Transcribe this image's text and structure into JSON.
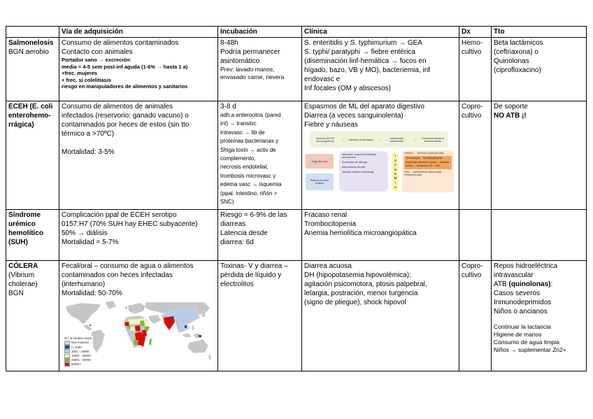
{
  "header": {
    "c1": "",
    "via": "Vía de adquisición",
    "inc": "Incubación",
    "cli": "Clínica",
    "dx": "Dx",
    "tto": "Tto"
  },
  "salmonelosis": {
    "name": "Salmonelosis",
    "subname": "BGN aerobio",
    "via": [
      "Consumo de alimentos contaminados",
      "Contacto con animales"
    ],
    "via_fine": [
      "Portador sano → excreción:",
      "media = 4-5 sem post-inf aguda (1-6% → hasta 1 a)",
      "+frec. mujeres",
      "+ frec. si colelitiasis",
      "riesgo en manipuladores de alimentos y sanitarios"
    ],
    "inc": [
      "8-48h",
      "Podría permanecer",
      "asintomático"
    ],
    "inc_fine": [
      "Prev: lavado manos,",
      "envasado carne, nevera"
    ],
    "cli": [
      "S. enteritidis y S. typhimurium → GEA",
      "S. typhi/ paratyphi → fiebre entérica",
      "(diseminación linf-hemática → focos en",
      "hígado, bazo, VB y MO), bacteriemia, inf",
      "endovasc e",
      "Inf focales (OM y abscesos)"
    ],
    "dx": [
      "Hemo-",
      "cultivo"
    ],
    "tto": [
      "Beta lactámicos",
      "(ceftriaxona) o",
      "Quinolonas",
      "(ciprofloxacino)"
    ]
  },
  "eceh": {
    "name": [
      "ECEH (E. coli",
      "enterohemo-",
      "rrágica)"
    ],
    "via": [
      "Consumo de alimentos de animales",
      "infectados (reservorio: ganado vacuno) o",
      "contaminados por heces de estos (sin tto",
      "térmico a >70ºC)",
      "",
      "Mortalidad: 3-5%"
    ],
    "inc": "3-8 d",
    "inc_fine": [
      "adh a enterocitos (pared",
      "int) → transloc",
      "intravasc → lib de",
      "proteínas bacterianas y",
      "Shiga toxin → activ de",
      "complemento,",
      "necrosis endotelial,",
      "trombosis microvasc y",
      "edema vasc → isquemia",
      "(ppal. intestino, riñón >",
      "SNC)"
    ],
    "cli": [
      "Espasmos de ML del aparato digestivo",
      "Diarrea (a veces sanguinolenta)",
      "Fiebre y náuseas"
    ],
    "dx": [
      "Copro-",
      "cultivo"
    ],
    "tto_1": "De soporte",
    "tto_2": "NO ATB ¡!",
    "diagram": {
      "top_steps": [
        "Inoculum (10-100 microorganisms)",
        "Adhesion (enterocytes)",
        "Intravascular translocation",
        "Production/release of virulence factors"
      ],
      "box_shiga": "Shiga-like toxin",
      "box_plasmid": "Plasmid-encoded proteins",
      "center": [
        "Alternative complement pathway development",
        "Endothelial cell damage",
        "Microvascular thrombi",
        "Vascular oedema and leakage"
      ],
      "ischemia": [
        "I",
        "S",
        "C",
        "H",
        "E",
        "M",
        "I",
        "A"
      ],
      "right_first": "Intestine → diarrhoea (watery/bloody)",
      "right_inner": [
        "Thrombocyte → thrombocytopenia",
        "Erythrocyte traumatic rupture → anaemia",
        "Kidney → ischaemia ATN → AKI"
      ],
      "right_last": "CNS → oedema/focal haemorrhage → coma/focal signs"
    }
  },
  "suh": {
    "name": [
      "Síndrome",
      "urémico",
      "hemolítico",
      "(SUH)"
    ],
    "via": [
      "Complicación ppal de ECEH serotipo",
      "0157:H7 (70% SUH hay EHEC subyacente)",
      "50% → diálisis",
      "Mortalidad = 5-7%"
    ],
    "inc": [
      "Riesgo = 6-9% de las",
      "diarreas",
      "Latencia desde",
      "diarrea: 6d"
    ],
    "cli": [
      "Fracaso renal",
      "Trombocitopenia",
      "Anemia hemolítica microangiopática"
    ]
  },
  "colera": {
    "name": "CÓLERA",
    "subname": [
      "(Vibrium",
      "cholerae)",
      "BGN"
    ],
    "via": [
      "Fecal/oral – consumo de agua o alimentos",
      "contaminados con heces infectadas",
      "(interhumano)",
      "Mortalidad: 50-70%"
    ],
    "inc": [
      "Toxinas- V y diarrea –",
      "pérdida de líquido y",
      "electrolitos"
    ],
    "cli": [
      "Diarrea acuosa",
      "DH (hipopotasemia hipovolémica):",
      "agitación psicomotora, ptosis palpebral,",
      "letargia, postración, menor turgencia",
      "(signo de pliegue), shock hipovol"
    ],
    "dx": [
      "Copro-",
      "cultivo"
    ],
    "tto": [
      "Repos hidroeléctrica",
      "intravascular"
    ],
    "tto_atb_pre": "ATB ",
    "tto_atb_bold": "(quinolonas)",
    "tto_atb_post": ":",
    "tto_list": [
      "Casos severos",
      "Inmunodeprimidos",
      "Niños o ancianos"
    ],
    "tto_fine": [
      "Continuar la lactancia",
      "Higiene de manos",
      "Consumo de agua limpia",
      "Niños → suplementar Zn2+"
    ],
    "map": {
      "legend_title": "No. of cholera cases",
      "legend": [
        {
          "label": "Non-endemic",
          "color": "#d9d9d9"
        },
        {
          "label": "<=1000",
          "color": "#16489c"
        },
        {
          "label": "1001 - 10000",
          "color": "#b9cfe8"
        },
        {
          "label": "10001 - 25000",
          "color": "#f6f3c3"
        },
        {
          "label": "25001 - 50000",
          "color": "#79bc2c"
        },
        {
          "label": "50001+",
          "color": "#dd0a0a"
        }
      ]
    }
  }
}
